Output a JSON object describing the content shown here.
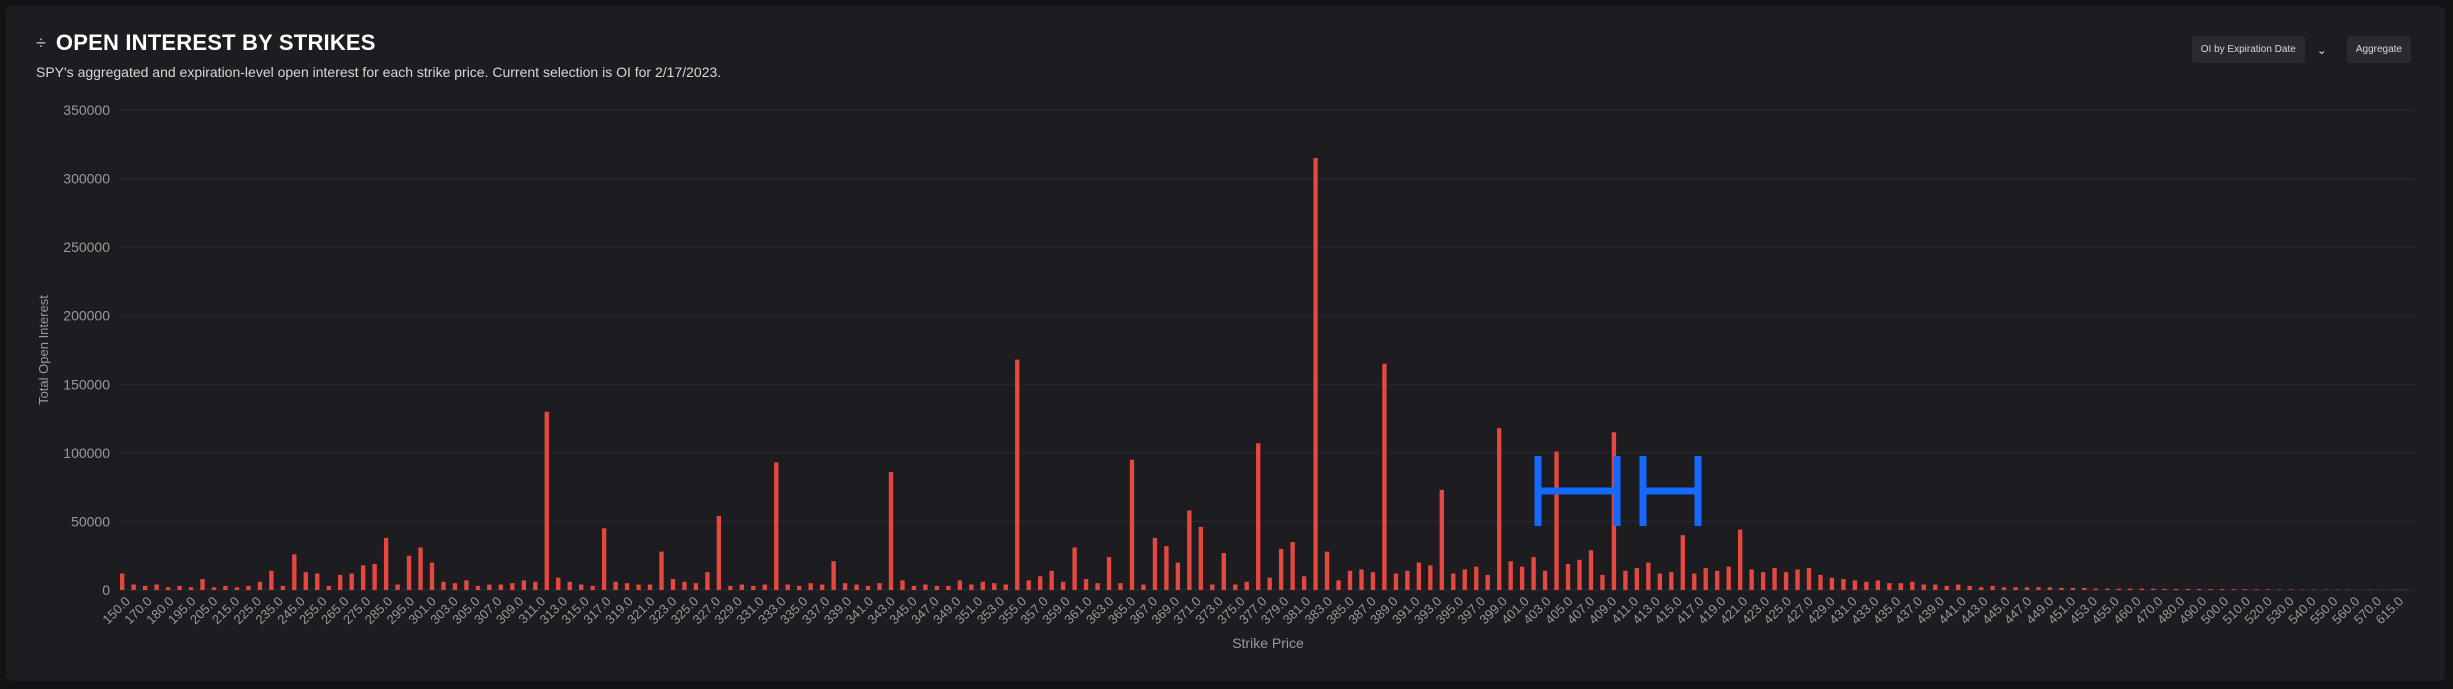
{
  "header": {
    "title_icon": "slider-icon",
    "title": "OPEN INTEREST BY STRIKES",
    "subtitle": "SPY's aggregated and expiration-level open interest for each strike price. Current selection is OI for 2/17/2023."
  },
  "controls": {
    "oi_by_expiration_label": "OI by Expiration Date",
    "aggregate_label": "Aggregate"
  },
  "colors": {
    "put": "#e5483f",
    "call": "#2fbf5c",
    "annotation": "#1469ff",
    "grid": "#2a2a30",
    "axis_text": "#9a9a9a"
  },
  "chart_data": {
    "type": "bar",
    "xlabel": "Strike Price",
    "ylabel": "Total Open Interest",
    "ylim": [
      0,
      350000
    ],
    "yticks": [
      0,
      50000,
      100000,
      150000,
      200000,
      250000,
      300000,
      350000
    ],
    "xtick_labels": [
      "150.0",
      "170.0",
      "180.0",
      "195.0",
      "205.0",
      "215.0",
      "225.0",
      "235.0",
      "245.0",
      "255.0",
      "265.0",
      "275.0",
      "285.0",
      "295.0",
      "301.0",
      "303.0",
      "305.0",
      "307.0",
      "309.0",
      "311.0",
      "313.0",
      "315.0",
      "317.0",
      "319.0",
      "321.0",
      "323.0",
      "325.0",
      "327.0",
      "329.0",
      "331.0",
      "333.0",
      "335.0",
      "337.0",
      "339.0",
      "341.0",
      "343.0",
      "345.0",
      "347.0",
      "349.0",
      "351.0",
      "353.0",
      "355.0",
      "357.0",
      "359.0",
      "361.0",
      "363.0",
      "365.0",
      "367.0",
      "369.0",
      "371.0",
      "373.0",
      "375.0",
      "377.0",
      "379.0",
      "381.0",
      "383.0",
      "385.0",
      "387.0",
      "389.0",
      "391.0",
      "393.0",
      "395.0",
      "397.0",
      "399.0",
      "401.0",
      "403.0",
      "405.0",
      "407.0",
      "409.0",
      "411.0",
      "413.0",
      "415.0",
      "417.0",
      "419.0",
      "421.0",
      "423.0",
      "425.0",
      "427.0",
      "429.0",
      "431.0",
      "433.0",
      "435.0",
      "437.0",
      "439.0",
      "441.0",
      "443.0",
      "445.0",
      "447.0",
      "449.0",
      "451.0",
      "453.0",
      "455.0",
      "460.0",
      "470.0",
      "480.0",
      "490.0",
      "500.0",
      "510.0",
      "520.0",
      "530.0",
      "540.0",
      "550.0",
      "560.0",
      "570.0",
      "615.0"
    ],
    "series": [
      {
        "kind": "put",
        "values": [
          12000,
          4000,
          3000,
          4000,
          2000,
          3000,
          2000,
          8000,
          2000,
          3000,
          2000,
          3000,
          6000,
          14000,
          3000,
          26000,
          13000,
          12000,
          3000,
          11000,
          12000,
          18000,
          19000,
          38000,
          4000,
          25000,
          31000,
          20000,
          6000,
          5000,
          7000,
          3000,
          4000,
          4000,
          5000,
          7000,
          6000,
          130000,
          9000,
          6000,
          4000,
          3000,
          45000,
          6000,
          5000,
          4000,
          4000,
          28000,
          8000,
          6000,
          5000,
          13000,
          54000,
          3000,
          4000,
          3000,
          4000,
          93000,
          4000,
          3000,
          5000,
          4000,
          21000,
          5000,
          4000,
          3000,
          5000,
          86000,
          7000,
          3000,
          4000,
          3000,
          3000,
          7000,
          4000,
          6000,
          5000,
          4000,
          168000,
          7000,
          10000,
          14000,
          6000,
          31000,
          8000,
          5000,
          24000,
          5000,
          95000,
          4000,
          38000,
          32000,
          20000,
          58000,
          46000,
          4000,
          27000,
          4000,
          6000,
          107000,
          9000,
          30000,
          35000,
          10000,
          315000,
          28000,
          7000,
          14000,
          15000,
          13000,
          165000,
          12000,
          14000,
          20000,
          18000,
          73000,
          12000,
          15000,
          17000,
          11000,
          118000,
          21000,
          17000,
          24000,
          14000,
          101000,
          19000,
          22000,
          29000,
          11000,
          115000,
          14000,
          16000,
          20000,
          12000,
          13000,
          40000,
          12000,
          16000,
          14000,
          17000,
          44000,
          15000,
          13000,
          16000,
          13000,
          15000,
          16000,
          11000,
          9000,
          8000,
          7000,
          6000,
          7000,
          5000,
          5000,
          6000,
          4000,
          4000,
          3000,
          4000,
          3000,
          2000,
          3000,
          2000,
          2000,
          2000,
          2000,
          2000,
          1500,
          1500,
          1500,
          1000,
          1000,
          1000,
          1000,
          1000,
          1000,
          800,
          800,
          800,
          800,
          700,
          700,
          600,
          600,
          500,
          500,
          400,
          400,
          300,
          300,
          300,
          300,
          200,
          200,
          200,
          200,
          200,
          200
        ]
      },
      {
        "kind": "call",
        "values": [
          0,
          0,
          0,
          0,
          0,
          0,
          0,
          0,
          0,
          0,
          0,
          0,
          0,
          0,
          0,
          0,
          0,
          0,
          0,
          0,
          0,
          0,
          0,
          0,
          0,
          0,
          0,
          0,
          0,
          0,
          0,
          0,
          0,
          0,
          0,
          0,
          0,
          0,
          0,
          0,
          0,
          0,
          0,
          0,
          0,
          0,
          0,
          0,
          0,
          0,
          0,
          0,
          0,
          0,
          0,
          0,
          0,
          0,
          0,
          0,
          0,
          0,
          0,
          0,
          0,
          0,
          0,
          0,
          0,
          0,
          0,
          0,
          0,
          0,
          0,
          0,
          0,
          0,
          0,
          0,
          0,
          0,
          0,
          0,
          0,
          0,
          0,
          0,
          0,
          0,
          0,
          0,
          0,
          0,
          0,
          0,
          0,
          0,
          0,
          0,
          0,
          0,
          0,
          0,
          0,
          0,
          0,
          0,
          0,
          0,
          0,
          0,
          0,
          0,
          0,
          0,
          0,
          0,
          0,
          0,
          0,
          0,
          0,
          0,
          0,
          0,
          0,
          0,
          0,
          0,
          0,
          0,
          0,
          0,
          0,
          0,
          0,
          0,
          0,
          0,
          0,
          0,
          0,
          0,
          0,
          0,
          0,
          0,
          0,
          0,
          0,
          0,
          0,
          0,
          0,
          0,
          0,
          0,
          0,
          0,
          0,
          0,
          0,
          0,
          0,
          0,
          0,
          0,
          0,
          0,
          0,
          0,
          0,
          0,
          0,
          0,
          0,
          0,
          0,
          0,
          0,
          0,
          0,
          0,
          0,
          0,
          0,
          0,
          0,
          0,
          0,
          0,
          0,
          0,
          0,
          0,
          0,
          0,
          0,
          0,
          0,
          0,
          0,
          0,
          0,
          0,
          0,
          0,
          0,
          0,
          0,
          0,
          0,
          0,
          0,
          0,
          0,
          0,
          0,
          0,
          0,
          0,
          0,
          0,
          0,
          0,
          0
        ]
      }
    ]
  }
}
